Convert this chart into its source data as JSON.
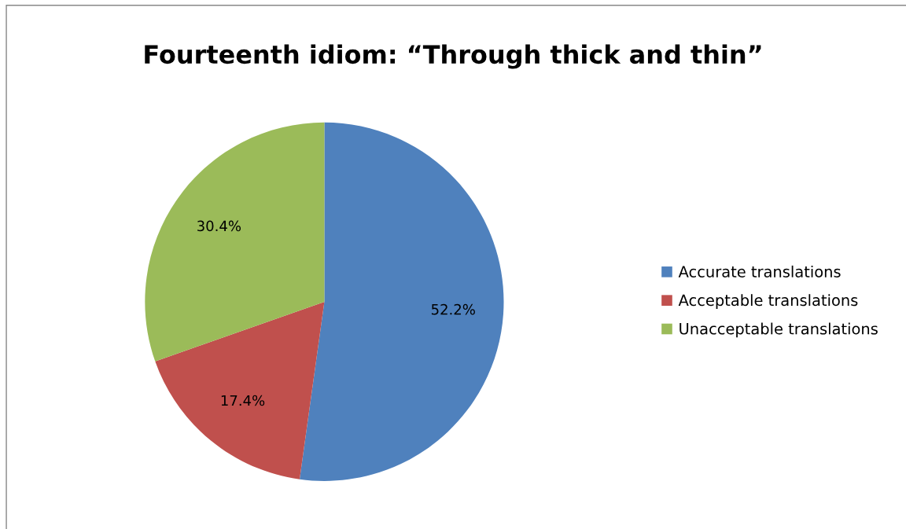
{
  "chart_data": {
    "type": "pie",
    "title": "Fourteenth idiom: “Through thick and thin”",
    "categories": [
      "Accurate translations",
      "Acceptable translations",
      "Unacceptable translations"
    ],
    "values": [
      52.2,
      17.4,
      30.4
    ],
    "colors": [
      "#4f81bd",
      "#c0504d",
      "#9bbb59"
    ],
    "value_labels": [
      "52.2%",
      "17.4%",
      "30.4%"
    ],
    "legend": "right"
  }
}
